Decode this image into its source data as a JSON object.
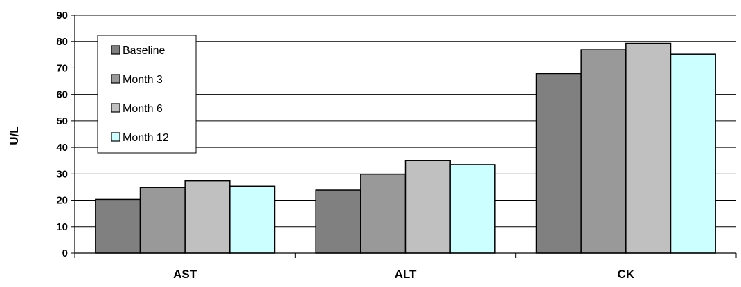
{
  "chart_data": {
    "type": "bar",
    "title": "",
    "xlabel": "",
    "ylabel": "U/L",
    "ylim": [
      0,
      90
    ],
    "yticks": [
      0,
      10,
      20,
      30,
      40,
      50,
      60,
      70,
      80,
      90
    ],
    "grid": true,
    "legend_position": "top-left",
    "categories": [
      "AST",
      "ALT",
      "CK"
    ],
    "series": [
      {
        "name": "Baseline",
        "values": [
          20.3,
          23.8,
          67.9
        ],
        "color": "#808080"
      },
      {
        "name": "Month 3",
        "values": [
          24.8,
          29.9,
          76.9
        ],
        "color": "#999999"
      },
      {
        "name": "Month 6",
        "values": [
          27.3,
          35.0,
          79.4
        ],
        "color": "#c0c0c0"
      },
      {
        "name": "Month 12",
        "values": [
          25.3,
          33.5,
          75.3
        ],
        "color": "#ccffff"
      }
    ]
  }
}
